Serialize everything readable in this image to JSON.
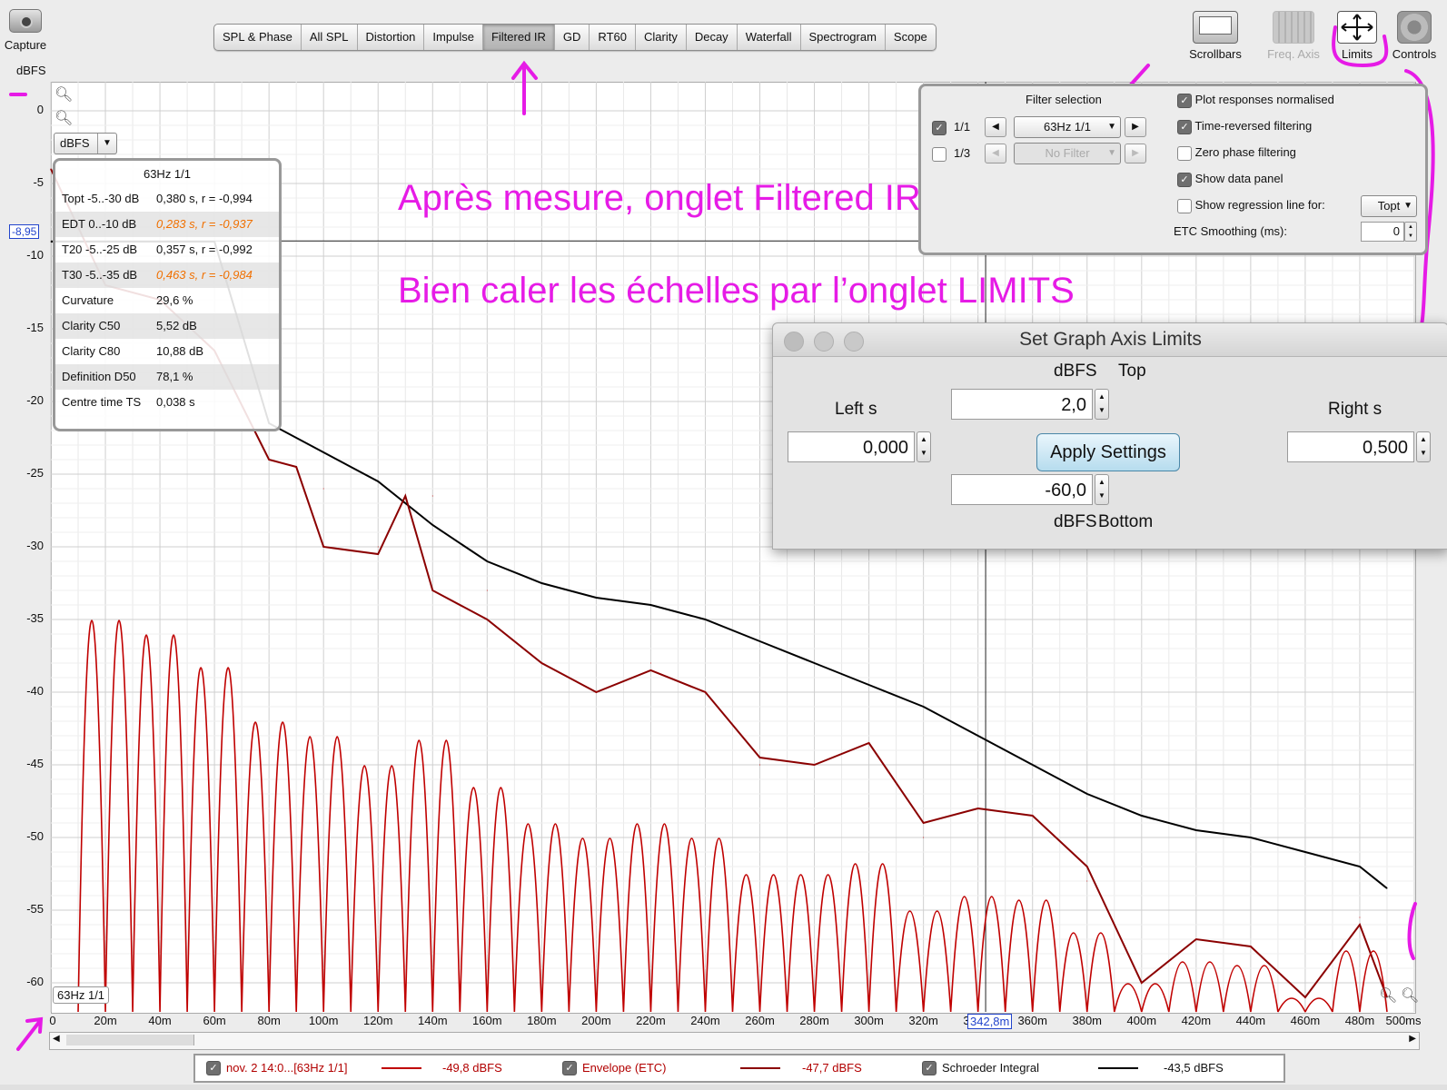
{
  "toolbar": {
    "capture_label": "Capture",
    "y_unit_label": "dBFS",
    "tabs": [
      "SPL & Phase",
      "All SPL",
      "Distortion",
      "Impulse",
      "Filtered IR",
      "GD",
      "RT60",
      "Clarity",
      "Decay",
      "Waterfall",
      "Spectrogram",
      "Scope"
    ],
    "active_tab": "Filtered IR",
    "scrollbars_label": "Scrollbars",
    "freq_axis_label": "Freq. Axis",
    "limits_label": "Limits",
    "controls_label": "Controls"
  },
  "graph": {
    "unit_select": "dBFS",
    "cursor_y": "-8,95",
    "cursor_x": "342,8m",
    "filter_tag": "63Hz 1/1",
    "y_ticks": [
      "0",
      "-5",
      "-10",
      "-15",
      "-20",
      "-25",
      "-30",
      "-35",
      "-40",
      "-45",
      "-50",
      "-55",
      "-60"
    ],
    "x_ticks": [
      "0",
      "20m",
      "40m",
      "60m",
      "80m",
      "100m",
      "120m",
      "140m",
      "160m",
      "180m",
      "200m",
      "220m",
      "240m",
      "260m",
      "280m",
      "300m",
      "320m",
      "340m",
      "360m",
      "380m",
      "400m",
      "420m",
      "440m",
      "460m",
      "480m",
      "500ms"
    ]
  },
  "data_panel": {
    "title": "63Hz 1/1",
    "rows": [
      {
        "k": "Topt -5..-30 dB",
        "v": "0,380 s,  r = -0,994",
        "orange": false
      },
      {
        "k": "EDT  0..-10 dB",
        "v": "0,283 s, r = -0,937",
        "orange": true
      },
      {
        "k": "T20 -5..-25 dB",
        "v": "0,357 s,  r = -0,992",
        "orange": false
      },
      {
        "k": "T30 -5..-35 dB",
        "v": "0,463 s, r = -0,984",
        "orange": true
      },
      {
        "k": "Curvature",
        "v": "29,6 %",
        "orange": false
      },
      {
        "k": "Clarity C50",
        "v": "5,52 dB",
        "orange": false
      },
      {
        "k": "Clarity C80",
        "v": "10,88 dB",
        "orange": false
      },
      {
        "k": "Definition D50",
        "v": "78,1 %",
        "orange": false
      },
      {
        "k": "Centre time TS",
        "v": "0,038 s",
        "orange": false
      }
    ]
  },
  "filter_panel": {
    "title": "Filter selection",
    "row1_label": "1/1",
    "row1_value": "63Hz 1/1",
    "row2_label": "1/3",
    "row2_value": "No Filter",
    "opt_normalised": "Plot responses normalised",
    "opt_time_reversed": "Time-reversed filtering",
    "opt_zero_phase": "Zero phase filtering",
    "opt_data_panel": "Show data panel",
    "opt_regression": "Show regression line for:",
    "regression_value": "Topt",
    "etc_smoothing_label": "ETC Smoothing (ms):",
    "etc_smoothing_value": "0"
  },
  "annotations": {
    "line1": "Après mesure, onglet Filtered IR",
    "line2": "Bien caler les échelles par l’onglet LIMITS"
  },
  "dialog": {
    "title": "Set Graph Axis Limits",
    "top_unit": "dBFS",
    "top_label": "Top",
    "top_value": "2,0",
    "left_label": "Left s",
    "left_value": "0,000",
    "right_label": "Right s",
    "right_value": "0,500",
    "bottom_value": "-60,0",
    "bottom_unit": "dBFS",
    "bottom_label": "Bottom",
    "apply_label": "Apply Settings"
  },
  "legend": {
    "item1_name": "nov. 2 14:0...[63Hz 1/1]",
    "item1_value": "-49,8 dBFS",
    "item2_name": "Envelope (ETC)",
    "item2_value": "-47,7 dBFS",
    "item3_name": "Schroeder Integral",
    "item3_value": "-43,5 dBFS"
  },
  "chart_data": {
    "type": "line",
    "xlabel": "",
    "ylabel": "dBFS",
    "xlim": [
      0,
      0.5
    ],
    "ylim": [
      -62,
      2
    ],
    "series": [
      {
        "name": "Schroeder Integral",
        "color": "#000000",
        "x": [
          0.0,
          0.02,
          0.04,
          0.06,
          0.08,
          0.1,
          0.12,
          0.14,
          0.16,
          0.18,
          0.2,
          0.22,
          0.24,
          0.26,
          0.28,
          0.3,
          0.32,
          0.34,
          0.36,
          0.38,
          0.4,
          0.42,
          0.44,
          0.46,
          0.48,
          0.49
        ],
        "y": [
          -9,
          -9,
          -9,
          -9,
          -21.5,
          -23.5,
          -25.5,
          -28.5,
          -31,
          -32.5,
          -33.5,
          -34,
          -35,
          -36.5,
          -38,
          -39.5,
          -41,
          -43,
          -45,
          -47,
          -48.5,
          -49.5,
          -50,
          -51,
          -52,
          -53.5
        ]
      },
      {
        "name": "Envelope (ETC)",
        "color": "#8b0000",
        "x": [
          0.0,
          0.02,
          0.04,
          0.06,
          0.08,
          0.09,
          0.1,
          0.12,
          0.13,
          0.14,
          0.16,
          0.18,
          0.2,
          0.22,
          0.24,
          0.26,
          0.28,
          0.3,
          0.32,
          0.34,
          0.36,
          0.38,
          0.4,
          0.42,
          0.44,
          0.46,
          0.48,
          0.49
        ],
        "y": [
          -4,
          -12,
          -13,
          -16.5,
          -24,
          -24.5,
          -30,
          -30.5,
          -26.5,
          -33,
          -35,
          -38,
          -40,
          -38.5,
          -40,
          -44.5,
          -45,
          -43.5,
          -49,
          -48,
          -48.5,
          -52,
          -60,
          -57,
          -57.5,
          -61,
          -56,
          -61
        ]
      },
      {
        "name": "nov. 2 14:0...[63Hz 1/1]",
        "color": "#c00000",
        "x": [
          0.02,
          0.04,
          0.06,
          0.08,
          0.1,
          0.12,
          0.14,
          0.16,
          0.18,
          0.2,
          0.22,
          0.24,
          0.26,
          0.28,
          0.3,
          0.32,
          0.34,
          0.36,
          0.38,
          0.4,
          0.42,
          0.44,
          0.46,
          0.48
        ],
        "y": [
          -10,
          -12,
          -16.5,
          -24,
          -26,
          -30,
          -26.5,
          -33,
          -38,
          -40,
          -38,
          -40,
          -45,
          -45,
          -43.5,
          -50,
          -48,
          -48.5,
          -53,
          -60,
          -57,
          -57.5,
          -62,
          -55.5
        ]
      }
    ]
  }
}
